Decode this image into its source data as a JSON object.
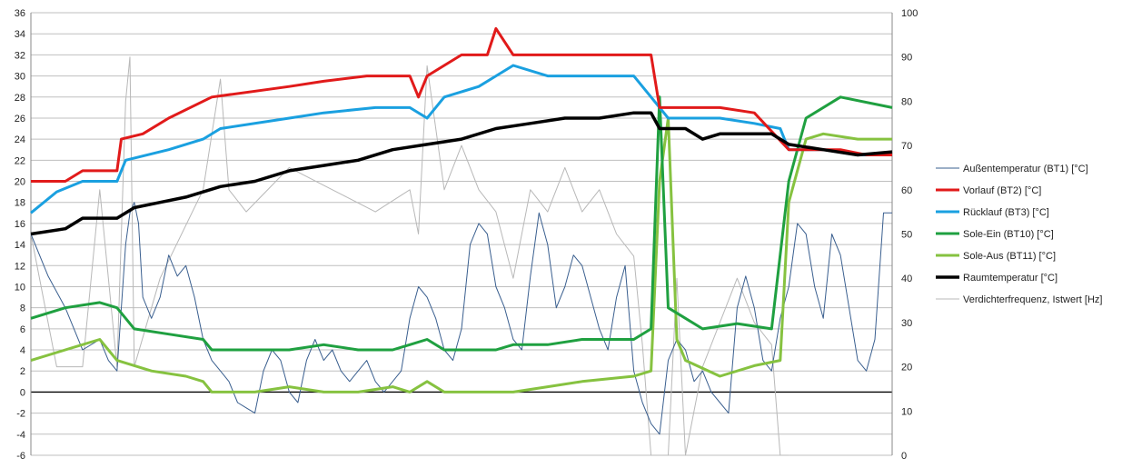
{
  "chart_data": {
    "type": "line",
    "title": "",
    "grid": true,
    "legend_position": "right",
    "y_left": {
      "min": -6,
      "max": 36,
      "step": 2,
      "ticks": [
        "-6",
        "-4",
        "-2",
        "0",
        "2",
        "4",
        "6",
        "8",
        "10",
        "12",
        "14",
        "16",
        "18",
        "20",
        "22",
        "24",
        "26",
        "28",
        "30",
        "32",
        "34",
        "36"
      ]
    },
    "y_right": {
      "min": 0,
      "max": 100,
      "step": 10,
      "ticks": [
        "0",
        "10",
        "20",
        "30",
        "40",
        "50",
        "60",
        "70",
        "80",
        "90",
        "100"
      ]
    },
    "x_range": [
      0,
      100
    ],
    "series": [
      {
        "name": "Außentemperatur (BT1) [°C]",
        "axis": "left",
        "color": "#3a5f8f",
        "width": 1,
        "points": [
          [
            0,
            15
          ],
          [
            2,
            11
          ],
          [
            4,
            8
          ],
          [
            6,
            4
          ],
          [
            8,
            5
          ],
          [
            9,
            3
          ],
          [
            10,
            2
          ],
          [
            11,
            14
          ],
          [
            11.5,
            17
          ],
          [
            12,
            18
          ],
          [
            12.5,
            16
          ],
          [
            13,
            9
          ],
          [
            14,
            7
          ],
          [
            15,
            9
          ],
          [
            16,
            13
          ],
          [
            17,
            11
          ],
          [
            18,
            12
          ],
          [
            19,
            9
          ],
          [
            20,
            5
          ],
          [
            21,
            3
          ],
          [
            22,
            2
          ],
          [
            23,
            1
          ],
          [
            24,
            -1
          ],
          [
            25,
            -1.5
          ],
          [
            26,
            -2
          ],
          [
            27,
            2
          ],
          [
            28,
            4
          ],
          [
            29,
            3
          ],
          [
            30,
            0
          ],
          [
            31,
            -1
          ],
          [
            32,
            3
          ],
          [
            33,
            5
          ],
          [
            34,
            3
          ],
          [
            35,
            4
          ],
          [
            36,
            2
          ],
          [
            37,
            1
          ],
          [
            38,
            2
          ],
          [
            39,
            3
          ],
          [
            40,
            1
          ],
          [
            41,
            0
          ],
          [
            42,
            1
          ],
          [
            43,
            2
          ],
          [
            44,
            7
          ],
          [
            45,
            10
          ],
          [
            46,
            9
          ],
          [
            47,
            7
          ],
          [
            48,
            4
          ],
          [
            49,
            3
          ],
          [
            50,
            6
          ],
          [
            51,
            14
          ],
          [
            52,
            16
          ],
          [
            53,
            15
          ],
          [
            54,
            10
          ],
          [
            55,
            8
          ],
          [
            56,
            5
          ],
          [
            57,
            4
          ],
          [
            58,
            11
          ],
          [
            59,
            17
          ],
          [
            60,
            14
          ],
          [
            61,
            8
          ],
          [
            62,
            10
          ],
          [
            63,
            13
          ],
          [
            64,
            12
          ],
          [
            65,
            9
          ],
          [
            66,
            6
          ],
          [
            67,
            4
          ],
          [
            68,
            9
          ],
          [
            69,
            12
          ],
          [
            70,
            2
          ],
          [
            71,
            -1
          ],
          [
            72,
            -3
          ],
          [
            73,
            -4
          ],
          [
            74,
            3
          ],
          [
            75,
            5
          ],
          [
            76,
            4
          ],
          [
            77,
            1
          ],
          [
            78,
            2
          ],
          [
            79,
            0
          ],
          [
            80,
            -1
          ],
          [
            81,
            -2
          ],
          [
            82,
            8
          ],
          [
            83,
            11
          ],
          [
            84,
            8
          ],
          [
            85,
            3
          ],
          [
            86,
            2
          ],
          [
            87,
            7
          ],
          [
            88,
            10
          ],
          [
            89,
            16
          ],
          [
            90,
            15
          ],
          [
            91,
            10
          ],
          [
            92,
            7
          ],
          [
            93,
            15
          ],
          [
            94,
            13
          ],
          [
            95,
            8
          ],
          [
            96,
            3
          ],
          [
            97,
            2
          ],
          [
            98,
            5
          ],
          [
            99,
            17
          ],
          [
            100,
            17
          ]
        ]
      },
      {
        "name": "Vorlauf (BT2) [°C]",
        "axis": "left",
        "color": "#e11a1a",
        "width": 3,
        "points": [
          [
            0,
            20
          ],
          [
            4,
            20
          ],
          [
            6,
            21
          ],
          [
            10,
            21
          ],
          [
            10.5,
            24
          ],
          [
            13,
            24.5
          ],
          [
            16,
            26
          ],
          [
            21,
            28
          ],
          [
            30,
            29
          ],
          [
            34,
            29.5
          ],
          [
            39,
            30
          ],
          [
            44,
            30
          ],
          [
            45,
            28
          ],
          [
            46,
            30
          ],
          [
            48,
            31
          ],
          [
            50,
            32
          ],
          [
            53,
            32
          ],
          [
            54,
            34.5
          ],
          [
            56,
            32
          ],
          [
            64,
            32
          ],
          [
            72,
            32
          ],
          [
            73,
            27
          ],
          [
            76,
            27
          ],
          [
            80,
            27
          ],
          [
            84,
            26.5
          ],
          [
            88,
            23
          ],
          [
            91,
            23
          ],
          [
            94,
            23
          ],
          [
            97,
            22.5
          ],
          [
            100,
            22.5
          ]
        ]
      },
      {
        "name": "Rücklauf (BT3) [°C]",
        "axis": "left",
        "color": "#1aa0e0",
        "width": 3,
        "points": [
          [
            0,
            17
          ],
          [
            3,
            19
          ],
          [
            6,
            20
          ],
          [
            10,
            20
          ],
          [
            11,
            22
          ],
          [
            16,
            23
          ],
          [
            20,
            24
          ],
          [
            22,
            25
          ],
          [
            30,
            26
          ],
          [
            34,
            26.5
          ],
          [
            40,
            27
          ],
          [
            44,
            27
          ],
          [
            46,
            26
          ],
          [
            48,
            28
          ],
          [
            52,
            29
          ],
          [
            54,
            30
          ],
          [
            56,
            31
          ],
          [
            60,
            30
          ],
          [
            64,
            30
          ],
          [
            70,
            30
          ],
          [
            72,
            28
          ],
          [
            74,
            26
          ],
          [
            80,
            26
          ],
          [
            84,
            25.5
          ],
          [
            87,
            25
          ],
          [
            88,
            23
          ],
          [
            92,
            23
          ],
          [
            96,
            22.5
          ],
          [
            100,
            22.5
          ]
        ]
      },
      {
        "name": "Sole-Ein (BT10) [°C]",
        "axis": "left",
        "color": "#1fa040",
        "width": 3,
        "points": [
          [
            0,
            7
          ],
          [
            4,
            8
          ],
          [
            8,
            8.5
          ],
          [
            10,
            8
          ],
          [
            12,
            6
          ],
          [
            16,
            5.5
          ],
          [
            20,
            5
          ],
          [
            21,
            4
          ],
          [
            26,
            4
          ],
          [
            30,
            4
          ],
          [
            34,
            4.5
          ],
          [
            38,
            4
          ],
          [
            42,
            4
          ],
          [
            44,
            4.5
          ],
          [
            46,
            5
          ],
          [
            48,
            4
          ],
          [
            50,
            4
          ],
          [
            54,
            4
          ],
          [
            56,
            4.5
          ],
          [
            60,
            4.5
          ],
          [
            64,
            5
          ],
          [
            70,
            5
          ],
          [
            72,
            6
          ],
          [
            73,
            28
          ],
          [
            74,
            8
          ],
          [
            76,
            7
          ],
          [
            78,
            6
          ],
          [
            82,
            6.5
          ],
          [
            86,
            6
          ],
          [
            88,
            20
          ],
          [
            90,
            26
          ],
          [
            94,
            28
          ],
          [
            100,
            27
          ]
        ]
      },
      {
        "name": "Sole-Aus (BT11) [°C]",
        "axis": "left",
        "color": "#86c240",
        "width": 3,
        "points": [
          [
            0,
            3
          ],
          [
            4,
            4
          ],
          [
            8,
            5
          ],
          [
            10,
            3
          ],
          [
            14,
            2
          ],
          [
            18,
            1.5
          ],
          [
            20,
            1
          ],
          [
            21,
            0
          ],
          [
            26,
            0
          ],
          [
            30,
            0.5
          ],
          [
            34,
            0
          ],
          [
            38,
            0
          ],
          [
            42,
            0.5
          ],
          [
            44,
            0
          ],
          [
            46,
            1
          ],
          [
            48,
            0
          ],
          [
            52,
            0
          ],
          [
            56,
            0
          ],
          [
            60,
            0.5
          ],
          [
            64,
            1
          ],
          [
            70,
            1.5
          ],
          [
            72,
            2
          ],
          [
            73,
            20
          ],
          [
            74,
            26
          ],
          [
            75,
            5
          ],
          [
            76,
            3
          ],
          [
            80,
            1.5
          ],
          [
            84,
            2.5
          ],
          [
            87,
            3
          ],
          [
            88,
            18
          ],
          [
            90,
            24
          ],
          [
            92,
            24.5
          ],
          [
            96,
            24
          ],
          [
            100,
            24
          ]
        ]
      },
      {
        "name": "Raumtemperatur [°C]",
        "axis": "left",
        "color": "#000000",
        "width": 3.5,
        "points": [
          [
            0,
            15
          ],
          [
            4,
            15.5
          ],
          [
            6,
            16.5
          ],
          [
            10,
            16.5
          ],
          [
            12,
            17.5
          ],
          [
            15,
            18
          ],
          [
            18,
            18.5
          ],
          [
            22,
            19.5
          ],
          [
            26,
            20
          ],
          [
            30,
            21
          ],
          [
            34,
            21.5
          ],
          [
            38,
            22
          ],
          [
            42,
            23
          ],
          [
            46,
            23.5
          ],
          [
            50,
            24
          ],
          [
            54,
            25
          ],
          [
            58,
            25.5
          ],
          [
            62,
            26
          ],
          [
            66,
            26
          ],
          [
            70,
            26.5
          ],
          [
            72,
            26.5
          ],
          [
            73,
            25
          ],
          [
            76,
            25
          ],
          [
            78,
            24
          ],
          [
            80,
            24.5
          ],
          [
            84,
            24.5
          ],
          [
            86,
            24.5
          ],
          [
            88,
            23.5
          ],
          [
            92,
            23
          ],
          [
            96,
            22.5
          ],
          [
            100,
            22.8
          ]
        ]
      },
      {
        "name": "Verdichterfrequenz, Istwert [Hz]",
        "axis": "right",
        "color": "#b8b8b8",
        "width": 1,
        "points": [
          [
            0,
            50
          ],
          [
            3,
            20
          ],
          [
            6,
            20
          ],
          [
            8,
            60
          ],
          [
            10,
            20
          ],
          [
            11,
            80
          ],
          [
            11.5,
            90
          ],
          [
            12,
            20
          ],
          [
            15,
            40
          ],
          [
            20,
            60
          ],
          [
            22,
            85
          ],
          [
            23,
            60
          ],
          [
            25,
            55
          ],
          [
            30,
            65
          ],
          [
            35,
            60
          ],
          [
            40,
            55
          ],
          [
            44,
            60
          ],
          [
            45,
            50
          ],
          [
            46,
            88
          ],
          [
            48,
            60
          ],
          [
            50,
            70
          ],
          [
            52,
            60
          ],
          [
            54,
            55
          ],
          [
            56,
            40
          ],
          [
            58,
            60
          ],
          [
            60,
            55
          ],
          [
            62,
            65
          ],
          [
            64,
            55
          ],
          [
            66,
            60
          ],
          [
            68,
            50
          ],
          [
            70,
            45
          ],
          [
            71,
            25
          ],
          [
            72,
            0
          ],
          [
            73,
            0
          ],
          [
            74,
            0
          ],
          [
            75,
            40
          ],
          [
            76,
            0
          ],
          [
            78,
            20
          ],
          [
            82,
            40
          ],
          [
            84,
            30
          ],
          [
            86,
            25
          ],
          [
            87,
            0
          ],
          [
            88,
            0
          ]
        ]
      }
    ]
  }
}
